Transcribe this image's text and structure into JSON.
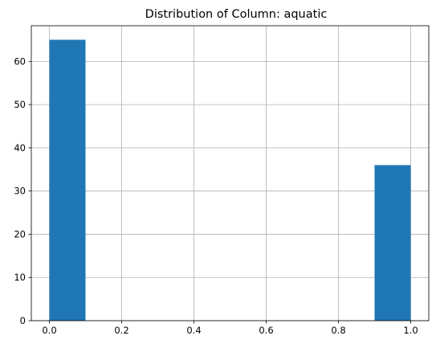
{
  "chart_data": {
    "type": "bar",
    "title": "Distribution of Column: aquatic",
    "xlabel": "",
    "ylabel": "",
    "xlim": [
      -0.05,
      1.05
    ],
    "ylim": [
      0,
      68.25
    ],
    "grid": true,
    "bar_color": "#1f77b4",
    "bins": [
      {
        "x0": 0.0,
        "x1": 0.1,
        "count": 65
      },
      {
        "x0": 0.1,
        "x1": 0.2,
        "count": 0
      },
      {
        "x0": 0.2,
        "x1": 0.3,
        "count": 0
      },
      {
        "x0": 0.3,
        "x1": 0.4,
        "count": 0
      },
      {
        "x0": 0.4,
        "x1": 0.5,
        "count": 0
      },
      {
        "x0": 0.5,
        "x1": 0.6,
        "count": 0
      },
      {
        "x0": 0.6,
        "x1": 0.7,
        "count": 0
      },
      {
        "x0": 0.7,
        "x1": 0.8,
        "count": 0
      },
      {
        "x0": 0.8,
        "x1": 0.9,
        "count": 0
      },
      {
        "x0": 0.9,
        "x1": 1.0,
        "count": 36
      }
    ],
    "x_ticks": [
      {
        "value": 0.0,
        "label": "0.0"
      },
      {
        "value": 0.2,
        "label": "0.2"
      },
      {
        "value": 0.4,
        "label": "0.4"
      },
      {
        "value": 0.6,
        "label": "0.6"
      },
      {
        "value": 0.8,
        "label": "0.8"
      },
      {
        "value": 1.0,
        "label": "1.0"
      }
    ],
    "y_ticks": [
      {
        "value": 0,
        "label": "0"
      },
      {
        "value": 10,
        "label": "10"
      },
      {
        "value": 20,
        "label": "20"
      },
      {
        "value": 30,
        "label": "30"
      },
      {
        "value": 40,
        "label": "40"
      },
      {
        "value": 50,
        "label": "50"
      },
      {
        "value": 60,
        "label": "60"
      }
    ]
  }
}
